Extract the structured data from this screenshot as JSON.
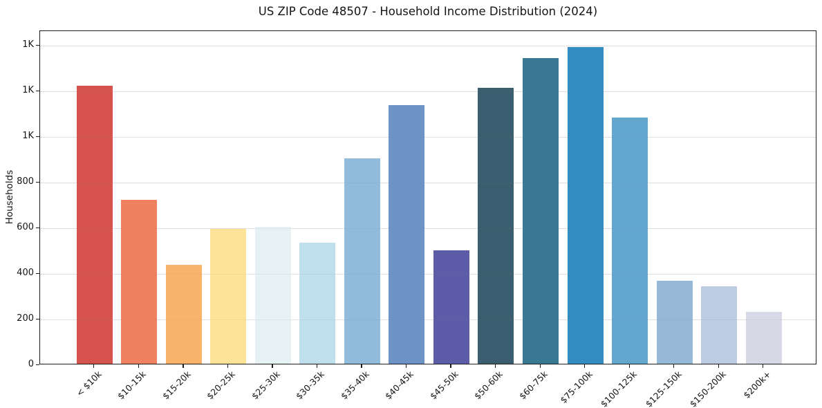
{
  "chart_data": {
    "type": "bar",
    "title": "US ZIP Code 48507 - Household Income Distribution (2024)",
    "xlabel": "",
    "ylabel": "Households",
    "categories": [
      "< $10k",
      "$10-15k",
      "$15-20k",
      "$20-25k",
      "$25-30k",
      "$30-35k",
      "$35-40k",
      "$40-45k",
      "$45-50k",
      "$50-60k",
      "$60-75k",
      "$75-100k",
      "$100-125k",
      "$125-150k",
      "$150-200k",
      "$200k+"
    ],
    "values": [
      1220,
      720,
      435,
      590,
      600,
      530,
      900,
      1135,
      497,
      1210,
      1340,
      1390,
      1080,
      365,
      340,
      228
    ],
    "bar_colors": [
      "#d6534d",
      "#f08160",
      "#fab36b",
      "#fde398",
      "#e5f1f3",
      "#c0dfec",
      "#90bbda",
      "#6d92c5",
      "#5d5ca9",
      "#3a5d6f",
      "#387892",
      "#338dc3",
      "#61a7ce",
      "#96b9d8",
      "#bccce3",
      "#d8d9e6"
    ],
    "ylim": [
      0,
      1465
    ],
    "ytick_values": [
      0,
      200,
      400,
      600,
      800,
      1000,
      1200,
      1400
    ],
    "ytick_labels": [
      "0",
      "200",
      "400",
      "600",
      "800",
      "1K",
      "1K",
      "1K"
    ],
    "grid": "horizontal",
    "legend_position": "none",
    "background_color": "#ffffff",
    "axis_color": "#1a1a1a",
    "grid_color": "#e9e9e9"
  }
}
